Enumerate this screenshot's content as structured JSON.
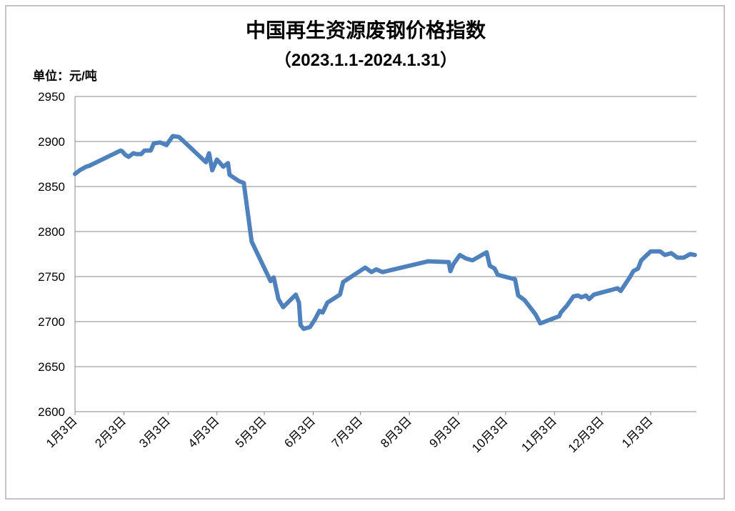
{
  "chart_data": {
    "type": "line",
    "title": "中国再生资源废钢价格指数",
    "subtitle": "（2023.1.1-2024.1.31）",
    "y_label": "单位：元/吨",
    "x": [
      0,
      3,
      7,
      9,
      29,
      30,
      32,
      34,
      37,
      39,
      42,
      44,
      48,
      50,
      54,
      58,
      62,
      66,
      83,
      85,
      87,
      90,
      94,
      97,
      98,
      104,
      107,
      112,
      124,
      126,
      129,
      132,
      140,
      142,
      143,
      145,
      149,
      152,
      155,
      157,
      160,
      168,
      170,
      184,
      188,
      191,
      195,
      224,
      237,
      238,
      240,
      244,
      248,
      252,
      261,
      263,
      266,
      268,
      279,
      281,
      285,
      292,
      295,
      298,
      307,
      308,
      312,
      316,
      319,
      321,
      324,
      326,
      329,
      344,
      346,
      352,
      354,
      357,
      359,
      365,
      371,
      374,
      378,
      382,
      386,
      390,
      393
    ],
    "series": [
      {
        "name": "中国再生资源废钢价格指数",
        "color": "#4f81bd",
        "values": [
          2864,
          2868,
          2872,
          2873,
          2890,
          2889,
          2885,
          2883,
          2887,
          2886,
          2886,
          2890,
          2890,
          2898,
          2899,
          2896,
          2906,
          2905,
          2877,
          2887,
          2868,
          2880,
          2872,
          2876,
          2863,
          2856,
          2854,
          2789,
          2745,
          2749,
          2725,
          2716,
          2730,
          2721,
          2696,
          2692,
          2694,
          2702,
          2712,
          2710,
          2721,
          2730,
          2744,
          2760,
          2755,
          2758,
          2755,
          2767,
          2766,
          2756,
          2764,
          2774,
          2770,
          2768,
          2777,
          2762,
          2759,
          2752,
          2747,
          2729,
          2724,
          2708,
          2698,
          2700,
          2706,
          2710,
          2718,
          2728,
          2729,
          2727,
          2729,
          2725,
          2730,
          2737,
          2734,
          2750,
          2756,
          2759,
          2768,
          2778,
          2778,
          2774,
          2776,
          2771,
          2771,
          2775,
          2774
        ]
      }
    ],
    "xlim": [
      0,
      394
    ],
    "xticks": [
      {
        "value": 0,
        "label": "1月3日"
      },
      {
        "value": 31,
        "label": "2月3日"
      },
      {
        "value": 59,
        "label": "3月3日"
      },
      {
        "value": 90,
        "label": "4月3日"
      },
      {
        "value": 120,
        "label": "5月3日"
      },
      {
        "value": 151,
        "label": "6月3日"
      },
      {
        "value": 181,
        "label": "7月3日"
      },
      {
        "value": 212,
        "label": "8月3日"
      },
      {
        "value": 243,
        "label": "9月3日"
      },
      {
        "value": 273,
        "label": "10月3日"
      },
      {
        "value": 304,
        "label": "11月3日"
      },
      {
        "value": 334,
        "label": "12月3日"
      },
      {
        "value": 365,
        "label": "1月3日"
      }
    ],
    "ylim": [
      2600,
      2950
    ],
    "yticks": [
      2600,
      2650,
      2700,
      2750,
      2800,
      2850,
      2900,
      2950
    ],
    "grid": true
  }
}
